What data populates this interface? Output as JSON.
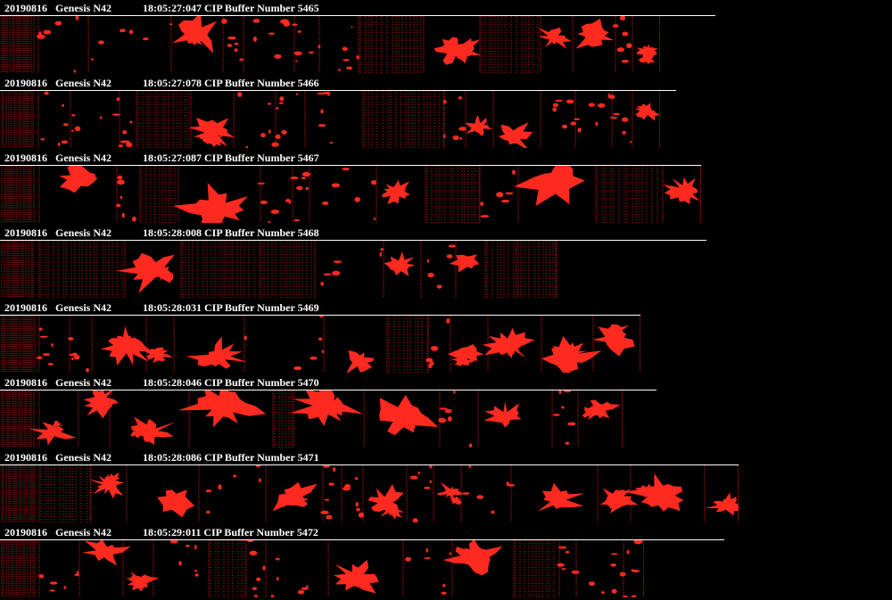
{
  "colors": {
    "background": "#000000",
    "text": "#ffffff",
    "particle": "#ff2a1f",
    "frame_line": "#c81a14"
  },
  "buffers": [
    {
      "date": "20190816",
      "probe": "Genesis N42",
      "time": "18:05:27:047",
      "label": "CIP Buffer Number",
      "number": "5465"
    },
    {
      "date": "20190816",
      "probe": "Genesis N42",
      "time": "18:05:27:078",
      "label": "CIP Buffer Number",
      "number": "5466"
    },
    {
      "date": "20190816",
      "probe": "Genesis N42",
      "time": "18:05:27:087",
      "label": "CIP Buffer Number",
      "number": "5467"
    },
    {
      "date": "20190816",
      "probe": "Genesis N42",
      "time": "18:05:28:008",
      "label": "CIP Buffer Number",
      "number": "5468"
    },
    {
      "date": "20190816",
      "probe": "Genesis N42",
      "time": "18:05:28:031",
      "label": "CIP Buffer Number",
      "number": "5469"
    },
    {
      "date": "20190816",
      "probe": "Genesis N42",
      "time": "18:05:28:046",
      "label": "CIP Buffer Number",
      "number": "5470"
    },
    {
      "date": "20190816",
      "probe": "Genesis N42",
      "time": "18:05:28:086",
      "label": "CIP Buffer Number",
      "number": "5471"
    },
    {
      "date": "20190816",
      "probe": "Genesis N42",
      "time": "18:05:29:011",
      "label": "CIP Buffer Number",
      "number": "5472"
    }
  ]
}
